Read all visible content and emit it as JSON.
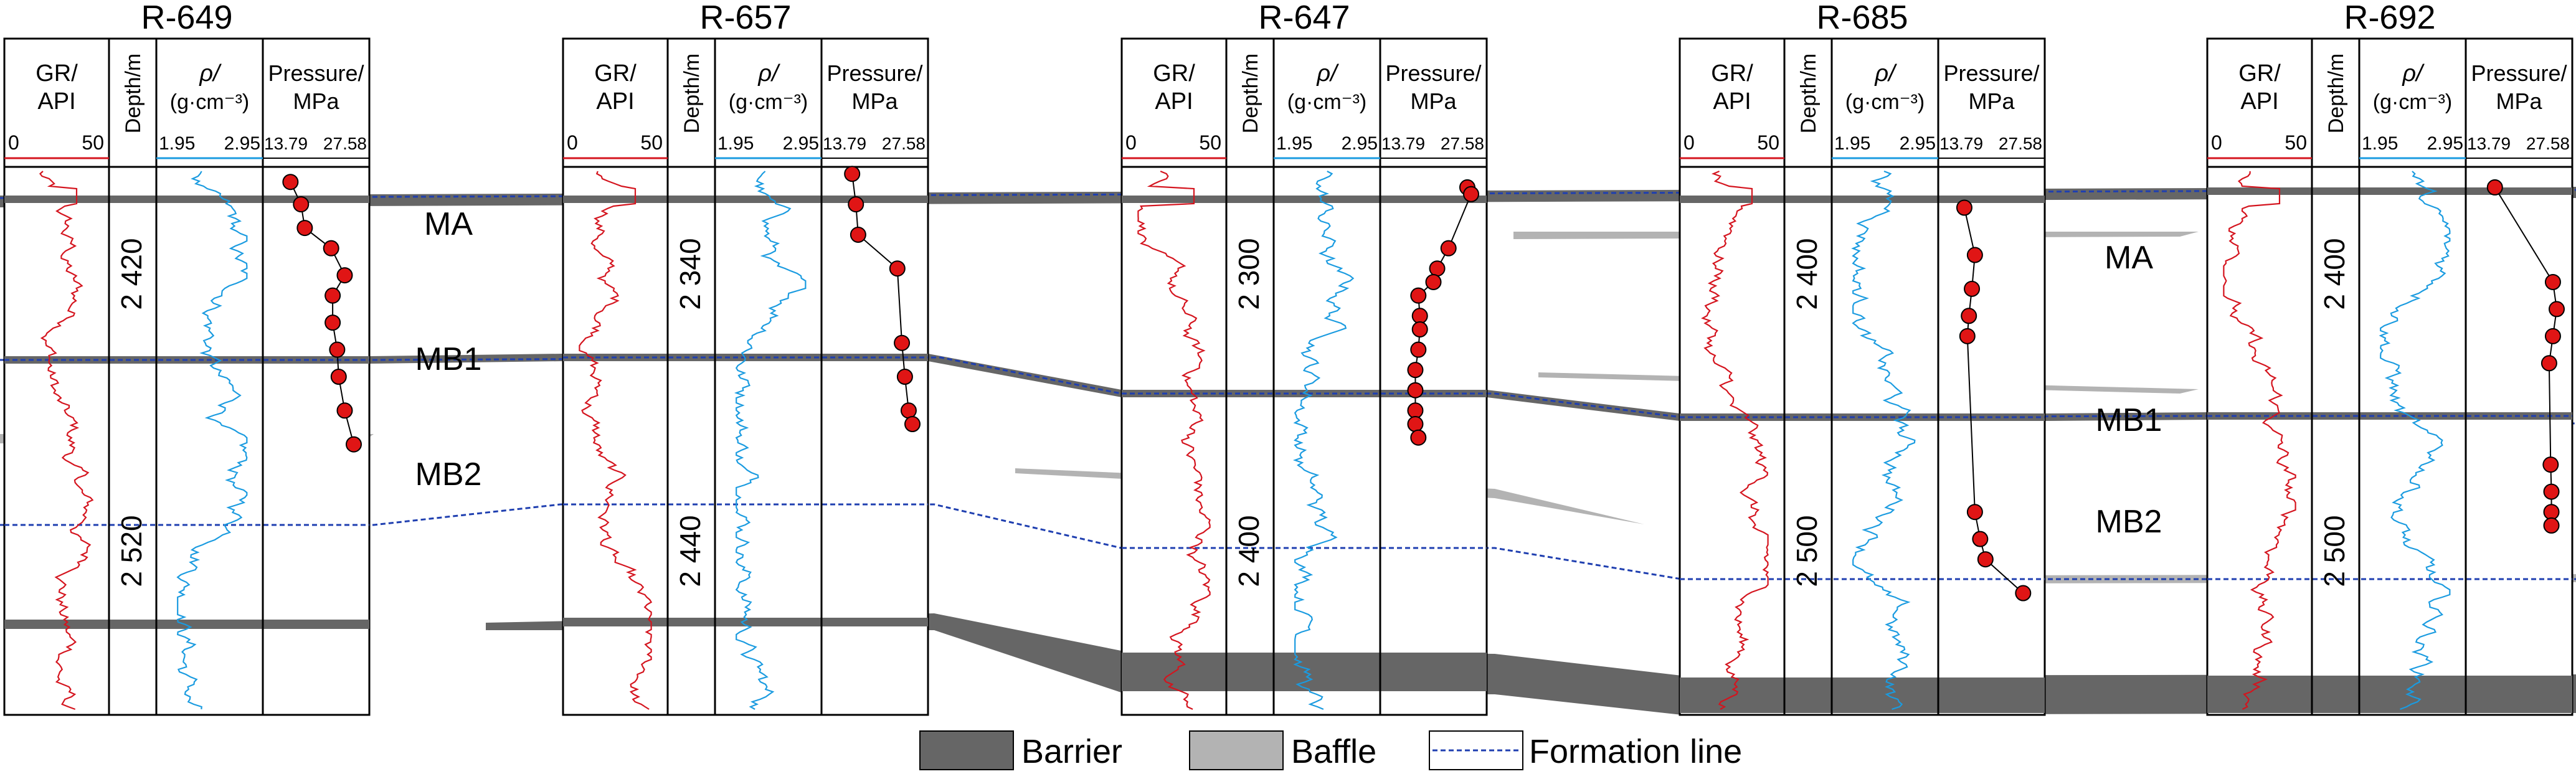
{
  "wells": [
    {
      "name": "R-649",
      "headers": {
        "gr": [
          "GR/",
          "API"
        ],
        "depth": "Depth/m",
        "rho": [
          "ρ/",
          "(g·cm⁻³)"
        ],
        "pressure": [
          "Pressure/",
          "MPa"
        ]
      },
      "scales": {
        "gr": [
          "0",
          "50"
        ],
        "rho": [
          "1.95",
          "2.95"
        ],
        "pressure": [
          "13.79",
          "27.58"
        ]
      },
      "depth_ticks": [
        "2 420",
        "2 520"
      ],
      "pressure_points": [
        [
          0.16,
          0.212
        ],
        [
          0.3,
          0.245
        ],
        [
          0.35,
          0.28
        ],
        [
          0.7,
          0.31
        ],
        [
          0.88,
          0.35
        ],
        [
          0.72,
          0.38
        ],
        [
          0.72,
          0.42
        ],
        [
          0.78,
          0.46
        ],
        [
          0.8,
          0.5
        ],
        [
          0.88,
          0.55
        ],
        [
          1.0,
          0.6
        ]
      ]
    },
    {
      "name": "R-657",
      "headers": {
        "gr": [
          "GR/",
          "API"
        ],
        "depth": "Depth/m",
        "rho": [
          "ρ/",
          "(g·cm⁻³)"
        ],
        "pressure": [
          "Pressure/",
          "MPa"
        ]
      },
      "scales": {
        "gr": [
          "0",
          "50"
        ],
        "rho": [
          "1.95",
          "2.95"
        ],
        "pressure": [
          "13.79",
          "27.58"
        ]
      },
      "depth_ticks": [
        "2 340",
        "2 440"
      ],
      "pressure_points": [
        [
          0.2,
          0.2
        ],
        [
          0.25,
          0.245
        ],
        [
          0.28,
          0.29
        ],
        [
          0.8,
          0.34
        ],
        [
          0.86,
          0.45
        ],
        [
          0.9,
          0.5
        ],
        [
          0.95,
          0.55
        ],
        [
          1.0,
          0.57
        ]
      ]
    },
    {
      "name": "R-647",
      "headers": {
        "gr": [
          "GR/",
          "API"
        ],
        "depth": "Depth/m",
        "rho": [
          "ρ/",
          "(g·cm⁻³)"
        ],
        "pressure": [
          "Pressure/",
          "MPa"
        ]
      },
      "scales": {
        "gr": [
          "0",
          "50"
        ],
        "rho": [
          "1.95",
          "2.95"
        ],
        "pressure": [
          "13.79",
          "27.58"
        ]
      },
      "depth_ticks": [
        "2 300",
        "2 400"
      ],
      "pressure_points": [
        [
          0.95,
          0.22
        ],
        [
          1.0,
          0.23
        ],
        [
          0.7,
          0.31
        ],
        [
          0.55,
          0.34
        ],
        [
          0.5,
          0.36
        ],
        [
          0.3,
          0.38
        ],
        [
          0.32,
          0.41
        ],
        [
          0.32,
          0.43
        ],
        [
          0.3,
          0.46
        ],
        [
          0.26,
          0.49
        ],
        [
          0.26,
          0.52
        ],
        [
          0.26,
          0.55
        ],
        [
          0.26,
          0.57
        ],
        [
          0.3,
          0.59
        ]
      ]
    },
    {
      "name": "R-685",
      "headers": {
        "gr": [
          "GR/",
          "API"
        ],
        "depth": "Depth/m",
        "rho": [
          "ρ/",
          "(g·cm⁻³)"
        ],
        "pressure": [
          "Pressure/",
          "MPa"
        ]
      },
      "scales": {
        "gr": [
          "0",
          "50"
        ],
        "rho": [
          "1.95",
          "2.95"
        ],
        "pressure": [
          "13.79",
          "27.58"
        ]
      },
      "depth_ticks": [
        "2 400",
        "2 500"
      ],
      "pressure_points": [
        [
          0.14,
          0.25
        ],
        [
          0.28,
          0.32
        ],
        [
          0.24,
          0.37
        ],
        [
          0.2,
          0.41
        ],
        [
          0.18,
          0.44
        ],
        [
          0.28,
          0.7
        ],
        [
          0.35,
          0.74
        ],
        [
          0.42,
          0.77
        ],
        [
          0.92,
          0.82
        ]
      ]
    },
    {
      "name": "R-692",
      "headers": {
        "gr": [
          "GR/",
          "API"
        ],
        "depth": "Depth/m",
        "rho": [
          "ρ/",
          "(g·cm⁻³)"
        ],
        "pressure": [
          "Pressure/",
          "MPa"
        ]
      },
      "scales": {
        "gr": [
          "0",
          "50"
        ],
        "rho": [
          "1.95",
          "2.95"
        ],
        "pressure": [
          "13.79",
          "27.58"
        ]
      },
      "depth_ticks": [
        "2 400",
        "2 500"
      ],
      "pressure_points": [
        [
          0.18,
          0.22
        ],
        [
          0.95,
          0.36
        ],
        [
          1.0,
          0.4
        ],
        [
          0.95,
          0.44
        ],
        [
          0.9,
          0.48
        ],
        [
          0.92,
          0.63
        ],
        [
          0.93,
          0.67
        ],
        [
          0.93,
          0.7
        ],
        [
          0.93,
          0.72
        ]
      ]
    }
  ],
  "zone_labels": [
    {
      "text": "MA",
      "gap": 0,
      "y": 0.29
    },
    {
      "text": "MB1",
      "gap": 0,
      "y": 0.49
    },
    {
      "text": "MB2",
      "gap": 0,
      "y": 0.66
    },
    {
      "text": "MA",
      "gap": 3,
      "y": 0.34
    },
    {
      "text": "MB1",
      "gap": 3,
      "y": 0.58
    },
    {
      "text": "MB2",
      "gap": 3,
      "y": 0.73
    }
  ],
  "legend": {
    "barrier": {
      "label": "Barrier",
      "color": "#666666"
    },
    "baffle": {
      "label": "Baffle",
      "color": "#b3b3b3"
    },
    "formation": {
      "label": "Formation line",
      "color": "#1f3fb0"
    }
  },
  "colors": {
    "gr": "#d4141e",
    "rho": "#1a9be0",
    "point": "#e01515",
    "barrier": "#666666",
    "baffle": "#b3b3b3",
    "formation": "#1f3fb0"
  }
}
